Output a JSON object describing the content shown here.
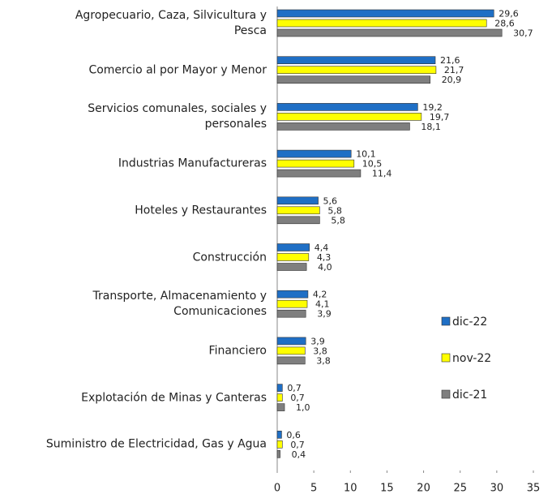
{
  "chart_data": {
    "type": "bar",
    "orientation": "horizontal",
    "categories": [
      "Agropecuario, Caza, Silvicultura y\nPesca",
      "Comercio al por Mayor y Menor",
      "Servicios comunales, sociales y\npersonales",
      "Industrias Manufactureras",
      "Hoteles y Restaurantes",
      "Construcción",
      "Transporte, Almacenamiento y\nComunicaciones",
      "Financiero",
      "Explotación de Minas y Canteras",
      "Suministro de Electricidad, Gas y Agua"
    ],
    "series": [
      {
        "name": "dic-22",
        "color": "#1f6fc5",
        "values": [
          29.6,
          21.6,
          19.2,
          10.1,
          5.6,
          4.4,
          4.2,
          3.9,
          0.7,
          0.6
        ],
        "value_labels": [
          "29,6",
          "21,6",
          "19,2",
          "10,1",
          "5,6",
          "4,4",
          "4,2",
          "3,9",
          "0,7",
          "0,6"
        ]
      },
      {
        "name": "nov-22",
        "color": "#ffff00",
        "values": [
          28.6,
          21.7,
          19.7,
          10.5,
          5.8,
          4.3,
          4.1,
          3.8,
          0.7,
          0.7
        ],
        "value_labels": [
          "28,6",
          "21,7",
          "19,7",
          "10,5",
          "5,8",
          "4,3",
          "4,1",
          "3,8",
          "0,7",
          "0,7"
        ]
      },
      {
        "name": "dic-21",
        "color": "#7f7f7f",
        "values": [
          30.7,
          20.9,
          18.1,
          11.4,
          5.8,
          4.0,
          3.9,
          3.8,
          1.0,
          0.4
        ],
        "value_labels": [
          "30,7",
          "20,9",
          "18,1",
          "11,4",
          "5,8",
          "4,0",
          "3,9",
          "3,8",
          "1,0",
          "0,4"
        ]
      }
    ],
    "xlim": [
      0,
      35
    ],
    "xticks": [
      0,
      5,
      10,
      15,
      20,
      25,
      30,
      35
    ],
    "grid": false,
    "legend": "right"
  }
}
